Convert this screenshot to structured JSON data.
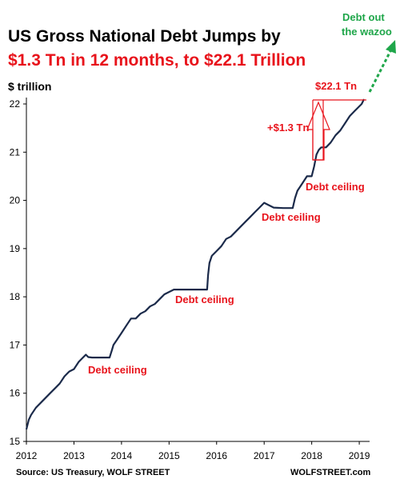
{
  "chart_data": {
    "type": "line",
    "title_line1": "US Gross National Debt Jumps by",
    "title_line2": "$1.3 Tn in 12 months, to $22.1 Trillion",
    "ylabel": "$ trillion",
    "xlabel": "",
    "xlim": [
      2012,
      2019.15
    ],
    "ylim": [
      15,
      22
    ],
    "x_ticks": [
      "2012",
      "2013",
      "2014",
      "2015",
      "2016",
      "2017",
      "2018",
      "2019"
    ],
    "y_ticks": [
      "15",
      "16",
      "17",
      "18",
      "19",
      "20",
      "21",
      "22"
    ],
    "grid": false,
    "series": [
      {
        "x": [
          2012.0,
          2012.05,
          2012.1,
          2012.2,
          2012.3,
          2012.4,
          2012.5,
          2012.6,
          2012.7,
          2012.8,
          2012.9,
          2013.0,
          2013.1,
          2013.2,
          2013.25,
          2013.3,
          2013.38,
          2013.5,
          2013.6,
          2013.7,
          2013.75,
          2013.8,
          2013.83,
          2013.9,
          2014.0,
          2014.1,
          2014.2,
          2014.3,
          2014.4,
          2014.5,
          2014.6,
          2014.7,
          2014.8,
          2014.9,
          2015.0,
          2015.1,
          2015.2,
          2015.3,
          2015.5,
          2015.7,
          2015.8,
          2015.82,
          2015.85,
          2015.9,
          2016.0,
          2016.1,
          2016.2,
          2016.3,
          2016.4,
          2016.5,
          2016.6,
          2016.7,
          2016.8,
          2016.9,
          2017.0,
          2017.1,
          2017.2,
          2017.4,
          2017.6,
          2017.65,
          2017.7,
          2017.8,
          2017.9,
          2017.95,
          2018.0,
          2018.05,
          2018.1,
          2018.15,
          2018.2,
          2018.3,
          2018.4,
          2018.5,
          2018.6,
          2018.7,
          2018.8,
          2018.9,
          2019.0,
          2019.05,
          2019.1
        ],
        "y": [
          15.25,
          15.45,
          15.55,
          15.7,
          15.8,
          15.9,
          16.0,
          16.1,
          16.2,
          16.35,
          16.45,
          16.5,
          16.65,
          16.75,
          16.8,
          16.75,
          16.74,
          16.74,
          16.74,
          16.74,
          16.74,
          16.9,
          17.0,
          17.1,
          17.25,
          17.4,
          17.55,
          17.55,
          17.65,
          17.7,
          17.8,
          17.85,
          17.95,
          18.05,
          18.1,
          18.15,
          18.15,
          18.15,
          18.15,
          18.15,
          18.15,
          18.45,
          18.7,
          18.85,
          18.95,
          19.05,
          19.2,
          19.25,
          19.35,
          19.45,
          19.55,
          19.65,
          19.75,
          19.85,
          19.95,
          19.9,
          19.85,
          19.84,
          19.84,
          20.05,
          20.2,
          20.35,
          20.5,
          20.5,
          20.5,
          20.7,
          20.95,
          21.05,
          21.1,
          21.1,
          21.2,
          21.35,
          21.45,
          21.6,
          21.75,
          21.85,
          21.95,
          22.0,
          22.1
        ]
      }
    ],
    "annotations": {
      "debt_ceiling_label": "Debt ceiling",
      "increase_label": "+$1.3 Tn",
      "level_label": "$22.1 Tn",
      "wazoo_line1": "Debt out",
      "wazoo_line2": "the wazoo"
    },
    "footer_source": "Source: US Treasury, WOLF STREET",
    "footer_site": "WOLFSTREET.com",
    "colors": {
      "line": "#1b2a4a",
      "red": "#e8131b",
      "green": "#1fa64a"
    }
  }
}
